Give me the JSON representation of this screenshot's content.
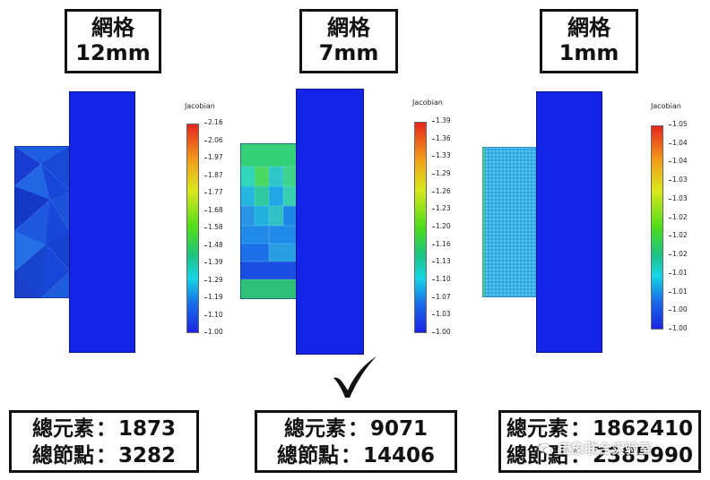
{
  "panels": [
    {
      "mesh_label": "網格",
      "mesh_size": "12mm",
      "legend": {
        "title": "Jacobian",
        "ticks": [
          "2.16",
          "2.06",
          "1.97",
          "1.87",
          "1.77",
          "1.68",
          "1.58",
          "1.48",
          "1.39",
          "1.29",
          "1.19",
          "1.10",
          "1.00"
        ]
      },
      "elements_label": "總元素",
      "elements_value": "1873",
      "nodes_label": "總節點",
      "nodes_value": "3282"
    },
    {
      "mesh_label": "網格",
      "mesh_size": "7mm",
      "legend": {
        "title": "Jacobian",
        "ticks": [
          "1.39",
          "1.36",
          "1.33",
          "1.29",
          "1.26",
          "1.23",
          "1.20",
          "1.16",
          "1.13",
          "1.10",
          "1.07",
          "1.03",
          "1.00"
        ]
      },
      "elements_label": "總元素",
      "elements_value": "9071",
      "nodes_label": "總節點",
      "nodes_value": "14406"
    },
    {
      "mesh_label": "網格",
      "mesh_size": "1mm",
      "legend": {
        "title": "Jacobian",
        "ticks": [
          "1.05",
          "1.04",
          "1.04",
          "1.03",
          "1.03",
          "1.02",
          "1.02",
          "1.02",
          "1.01",
          "1.01",
          "1.00",
          "1.00"
        ]
      },
      "elements_label": "總元素",
      "elements_value": "1862410",
      "nodes_label": "總節點",
      "nodes_value": "2385990"
    }
  ],
  "separator": "：",
  "watermark": "宝象联合实验室",
  "colors": {
    "block": "#1324e6"
  }
}
